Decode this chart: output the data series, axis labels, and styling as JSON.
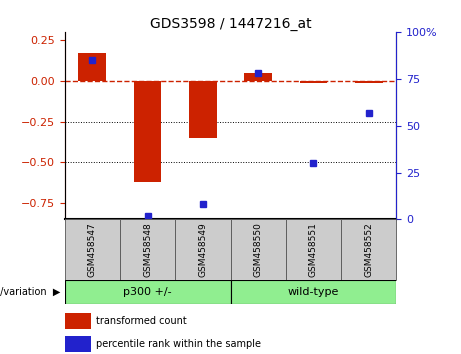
{
  "title": "GDS3598 / 1447216_at",
  "categories": [
    "GSM458547",
    "GSM458548",
    "GSM458549",
    "GSM458550",
    "GSM458551",
    "GSM458552"
  ],
  "red_bars": [
    0.17,
    -0.62,
    -0.35,
    0.05,
    -0.012,
    -0.012
  ],
  "blue_dots": [
    85,
    2,
    8,
    78,
    30,
    57
  ],
  "left_ylim": [
    -0.85,
    0.3
  ],
  "right_ylim": [
    0,
    100
  ],
  "left_yticks": [
    0.25,
    0.0,
    -0.25,
    -0.5,
    -0.75
  ],
  "right_yticks": [
    100,
    75,
    50,
    25,
    0
  ],
  "bar_color": "#cc2200",
  "dot_color": "#2222cc",
  "dashed_color": "#cc2200",
  "dotted_color": "#000000",
  "group1_label": "p300 +/-",
  "group2_label": "wild-type",
  "group_label_text": "genotype/variation",
  "legend_red": "transformed count",
  "legend_blue": "percentile rank within the sample",
  "group1_color": "#90ee90",
  "group2_color": "#90ee90",
  "tick_bg_color": "#cccccc",
  "title_fontsize": 10
}
